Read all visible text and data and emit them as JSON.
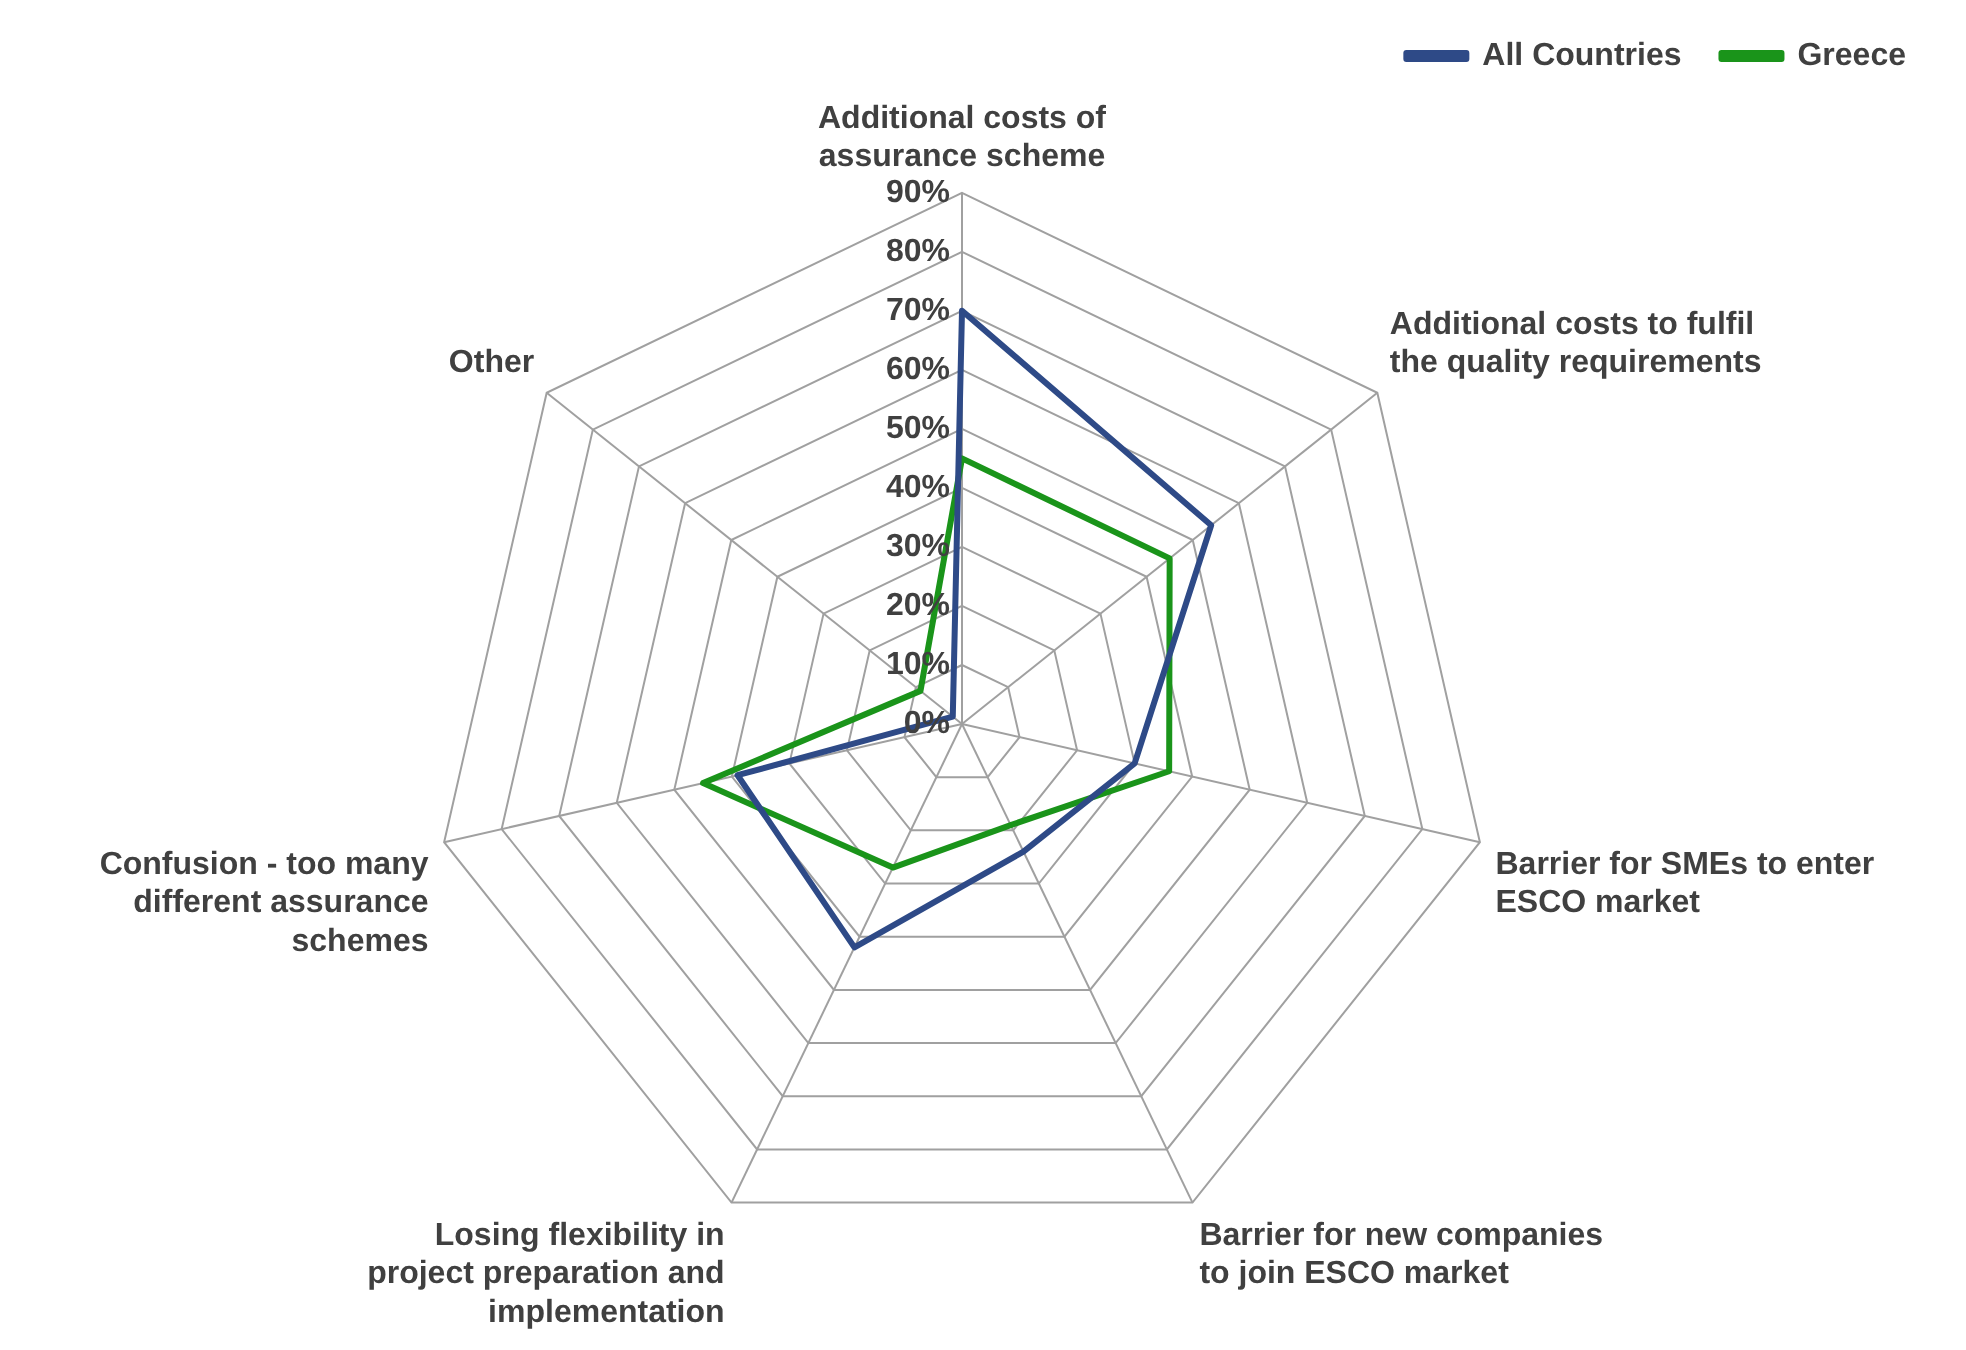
{
  "chart_data": {
    "type": "radar",
    "categories": [
      "Additional costs of assurance scheme",
      "Additional costs to fulfil the quality requirements",
      "Barrier for SMEs to enter ESCO market",
      "Barrier for new companies to join ESCO market",
      "Losing flexibility in project preparation and implementation",
      "Confusion - too many different assurance schemes",
      "Other"
    ],
    "series": [
      {
        "name": "All Countries",
        "color": "#2e4a87",
        "values": [
          70,
          54,
          30,
          24,
          42,
          39,
          2
        ]
      },
      {
        "name": "Greece",
        "color": "#1a941a",
        "values": [
          45,
          45,
          36,
          19,
          27,
          45,
          9
        ]
      }
    ],
    "ylim": [
      0,
      90
    ],
    "yticks": [
      {
        "value": 0,
        "label": "0%"
      },
      {
        "value": 10,
        "label": "10%"
      },
      {
        "value": 20,
        "label": "20%"
      },
      {
        "value": 30,
        "label": "30%"
      },
      {
        "value": 40,
        "label": "40%"
      },
      {
        "value": 50,
        "label": "50%"
      },
      {
        "value": 60,
        "label": "60%"
      },
      {
        "value": 70,
        "label": "70%"
      },
      {
        "value": 80,
        "label": "80%"
      },
      {
        "value": 90,
        "label": "90%"
      }
    ],
    "grid": true,
    "legend": "top right",
    "marker": "none",
    "line_style": "solid"
  }
}
